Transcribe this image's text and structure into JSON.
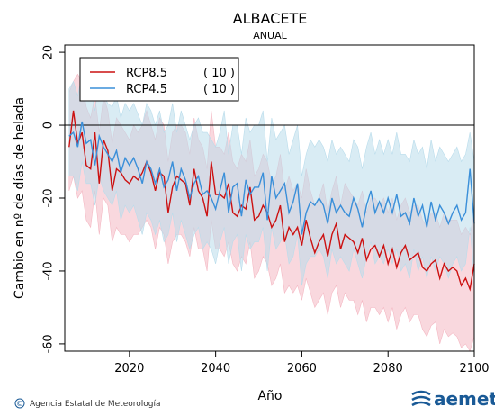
{
  "chart_data": {
    "type": "line",
    "title": "ALBACETE",
    "subtitle": "ANUAL",
    "xlabel": "Año",
    "ylabel": "Cambio en nº de días de helada",
    "xlim": [
      2005,
      2100
    ],
    "ylim": [
      -62,
      22
    ],
    "xticks": [
      2020,
      2040,
      2060,
      2080,
      2100
    ],
    "yticks": [
      20,
      0,
      -20,
      -40,
      -60
    ],
    "zero_line": 0,
    "legend_position": "top-left",
    "x_start": 2006,
    "series": [
      {
        "name": "RCP8.5",
        "count_label": "( 10 )",
        "color": "#cc1111",
        "band_color": "#f4b8c3",
        "values": [
          -6,
          4,
          -5,
          -2,
          -11,
          -12,
          -2,
          -16,
          -4,
          -7,
          -18,
          -12,
          -13,
          -15,
          -16,
          -14,
          -15,
          -13,
          -10,
          -13,
          -18,
          -13,
          -14,
          -24,
          -17,
          -14,
          -15,
          -16,
          -22,
          -12,
          -18,
          -20,
          -25,
          -10,
          -19,
          -19,
          -20,
          -16,
          -24,
          -25,
          -22,
          -23,
          -17,
          -26,
          -25,
          -22,
          -24,
          -28,
          -26,
          -22,
          -32,
          -28,
          -30,
          -28,
          -33,
          -26,
          -31,
          -35,
          -32,
          -30,
          -36,
          -30,
          -27,
          -34,
          -30,
          -31,
          -32,
          -35,
          -31,
          -37,
          -34,
          -33,
          -36,
          -33,
          -38,
          -34,
          -39,
          -35,
          -33,
          -37,
          -36,
          -35,
          -39,
          -40,
          -38,
          -37,
          -42,
          -38,
          -40,
          -39,
          -40,
          -44,
          -42,
          -45,
          -38
        ],
        "upper": [
          9,
          12,
          14,
          12,
          5,
          2,
          8,
          -2,
          8,
          4,
          -5,
          2,
          0,
          -2,
          -4,
          0,
          -2,
          0,
          4,
          0,
          -4,
          2,
          0,
          -10,
          -2,
          0,
          0,
          -2,
          -8,
          2,
          -4,
          -6,
          -12,
          4,
          -6,
          -6,
          -8,
          -2,
          -10,
          -12,
          -8,
          -10,
          -4,
          -14,
          -12,
          -8,
          -10,
          -16,
          -14,
          -8,
          -18,
          -14,
          -18,
          -16,
          -20,
          -12,
          -18,
          -22,
          -20,
          -16,
          -24,
          -18,
          -14,
          -22,
          -16,
          -18,
          -20,
          -22,
          -18,
          -24,
          -20,
          -20,
          -22,
          -20,
          -24,
          -20,
          -26,
          -22,
          -20,
          -24,
          -22,
          -22,
          -26,
          -28,
          -24,
          -24,
          -28,
          -24,
          -26,
          -26,
          -26,
          -30,
          -28,
          -30,
          -24
        ],
        "lower": [
          -18,
          -14,
          -20,
          -18,
          -26,
          -28,
          -18,
          -30,
          -20,
          -22,
          -32,
          -28,
          -30,
          -30,
          -32,
          -30,
          -30,
          -28,
          -26,
          -28,
          -34,
          -28,
          -30,
          -38,
          -32,
          -30,
          -30,
          -32,
          -36,
          -28,
          -34,
          -34,
          -40,
          -26,
          -34,
          -34,
          -36,
          -32,
          -38,
          -40,
          -36,
          -38,
          -32,
          -42,
          -40,
          -36,
          -38,
          -44,
          -42,
          -38,
          -46,
          -44,
          -46,
          -44,
          -48,
          -42,
          -46,
          -50,
          -48,
          -46,
          -52,
          -46,
          -44,
          -50,
          -46,
          -48,
          -48,
          -52,
          -48,
          -54,
          -50,
          -50,
          -52,
          -50,
          -54,
          -50,
          -56,
          -52,
          -50,
          -54,
          -52,
          -52,
          -56,
          -58,
          -55,
          -54,
          -60,
          -56,
          -58,
          -57,
          -58,
          -61,
          -60,
          -62,
          -58
        ]
      },
      {
        "name": "RCP4.5",
        "count_label": "( 10 )",
        "color": "#3a8fd9",
        "band_color": "#b9dceb",
        "values": [
          -3,
          -2,
          -6,
          1,
          -5,
          -4,
          -11,
          -3,
          -6,
          -8,
          -10,
          -7,
          -13,
          -9,
          -11,
          -9,
          -12,
          -16,
          -10,
          -12,
          -16,
          -12,
          -17,
          -15,
          -10,
          -18,
          -12,
          -15,
          -20,
          -16,
          -14,
          -19,
          -18,
          -20,
          -23,
          -18,
          -13,
          -24,
          -17,
          -16,
          -25,
          -15,
          -19,
          -17,
          -17,
          -13,
          -26,
          -14,
          -20,
          -18,
          -16,
          -24,
          -21,
          -16,
          -30,
          -24,
          -21,
          -22,
          -20,
          -22,
          -27,
          -20,
          -24,
          -22,
          -24,
          -25,
          -20,
          -23,
          -28,
          -22,
          -18,
          -24,
          -21,
          -24,
          -20,
          -24,
          -19,
          -25,
          -24,
          -27,
          -20,
          -25,
          -22,
          -28,
          -21,
          -26,
          -22,
          -24,
          -27,
          -24,
          -22,
          -26,
          -24,
          -12,
          -27
        ],
        "upper": [
          10,
          12,
          8,
          14,
          9,
          10,
          4,
          12,
          8,
          6,
          5,
          8,
          2,
          6,
          4,
          6,
          3,
          0,
          6,
          4,
          0,
          4,
          -2,
          0,
          6,
          -2,
          4,
          0,
          -4,
          0,
          2,
          -2,
          -2,
          -4,
          -6,
          -2,
          4,
          -8,
          0,
          0,
          -8,
          2,
          -2,
          0,
          0,
          4,
          -10,
          2,
          -4,
          -2,
          0,
          -8,
          -4,
          0,
          -14,
          -8,
          -4,
          -6,
          -4,
          -6,
          -10,
          -4,
          -8,
          -6,
          -8,
          -10,
          -4,
          -6,
          -12,
          -6,
          -2,
          -8,
          -4,
          -8,
          -4,
          -8,
          -2,
          -8,
          -8,
          -10,
          -4,
          -8,
          -6,
          -12,
          -4,
          -10,
          -6,
          -8,
          -10,
          -8,
          -6,
          -10,
          -8,
          -2,
          -10
        ],
        "lower": [
          -14,
          -14,
          -18,
          -10,
          -16,
          -16,
          -22,
          -14,
          -18,
          -20,
          -22,
          -18,
          -26,
          -22,
          -24,
          -22,
          -26,
          -30,
          -24,
          -26,
          -30,
          -26,
          -32,
          -30,
          -24,
          -32,
          -26,
          -30,
          -34,
          -30,
          -28,
          -34,
          -32,
          -34,
          -38,
          -32,
          -28,
          -38,
          -32,
          -30,
          -40,
          -30,
          -34,
          -32,
          -32,
          -28,
          -40,
          -28,
          -34,
          -32,
          -30,
          -38,
          -36,
          -30,
          -44,
          -38,
          -36,
          -36,
          -34,
          -36,
          -42,
          -34,
          -38,
          -36,
          -38,
          -40,
          -34,
          -38,
          -42,
          -36,
          -32,
          -38,
          -36,
          -38,
          -34,
          -38,
          -34,
          -40,
          -38,
          -42,
          -34,
          -40,
          -36,
          -42,
          -36,
          -40,
          -36,
          -38,
          -42,
          -38,
          -36,
          -40,
          -38,
          -28,
          -42
        ]
      }
    ]
  },
  "footer": {
    "credit": "Agencia Estatal de Meteorología",
    "copyright_symbol": "©",
    "logo": "aemet"
  }
}
